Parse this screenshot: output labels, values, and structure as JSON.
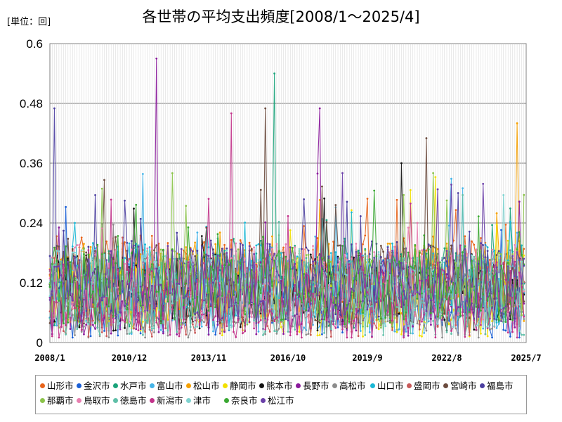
{
  "chart_data": {
    "type": "line",
    "title": "各世帯の平均支出頻度[2008/1～2025/4]",
    "unit_label": "[単位：回]",
    "ylim": [
      0,
      0.6
    ],
    "y_ticks": [
      "0",
      "0.12",
      "0.24",
      "0.36",
      "0.48",
      "0.6"
    ],
    "x_range": [
      "2008/1",
      "2025/7"
    ],
    "x_ticks": [
      "2008/1",
      "2010/12",
      "2013/11",
      "2016/10",
      "2019/9",
      "2022/8",
      "2025/7"
    ],
    "grid": true,
    "legend_position": "bottom",
    "series": [
      {
        "name": "山形市",
        "color": "#e8641b"
      },
      {
        "name": "金沢市",
        "color": "#1a5fd6"
      },
      {
        "name": "水戸市",
        "color": "#1aa37a"
      },
      {
        "name": "富山市",
        "color": "#45b4e8"
      },
      {
        "name": "松山市",
        "color": "#f5a000"
      },
      {
        "name": "静岡市",
        "color": "#f2e000"
      },
      {
        "name": "熊本市",
        "color": "#111111"
      },
      {
        "name": "長野市",
        "color": "#8a1a9b"
      },
      {
        "name": "高松市",
        "color": "#8c8c8c"
      },
      {
        "name": "山口市",
        "color": "#1ab8d6"
      },
      {
        "name": "盛岡市",
        "color": "#c85a5a"
      },
      {
        "name": "宮崎市",
        "color": "#6b4b3e"
      },
      {
        "name": "福島市",
        "color": "#4b3fa0"
      },
      {
        "name": "那覇市",
        "color": "#8bc34a"
      },
      {
        "name": "鳥取市",
        "color": "#e87fb0"
      },
      {
        "name": "徳島市",
        "color": "#5fbfa8"
      },
      {
        "name": "新潟市",
        "color": "#c2338a"
      },
      {
        "name": "津市",
        "color": "#7fd3d0"
      },
      {
        "name": "奈良市",
        "color": "#3aa832"
      },
      {
        "name": "松江市",
        "color": "#6a3fa8"
      }
    ],
    "notable_peaks": [
      {
        "series": "長野市",
        "date": "2011/12",
        "value": 0.57
      },
      {
        "series": "水戸市",
        "date": "2016/4",
        "value": 0.54
      },
      {
        "series": "松山市",
        "date": "2025/3",
        "value": 0.44
      },
      {
        "series": "福島市",
        "date": "2008/3",
        "value": 0.47
      },
      {
        "series": "新潟市",
        "date": "2014/9",
        "value": 0.46
      },
      {
        "series": "長野市",
        "date": "2017/12",
        "value": 0.47
      },
      {
        "series": "宮崎市",
        "date": "2015/12",
        "value": 0.47
      },
      {
        "series": "熊本市",
        "date": "2020/12",
        "value": 0.36
      },
      {
        "series": "宮崎市",
        "date": "2021/11",
        "value": 0.41
      }
    ]
  }
}
